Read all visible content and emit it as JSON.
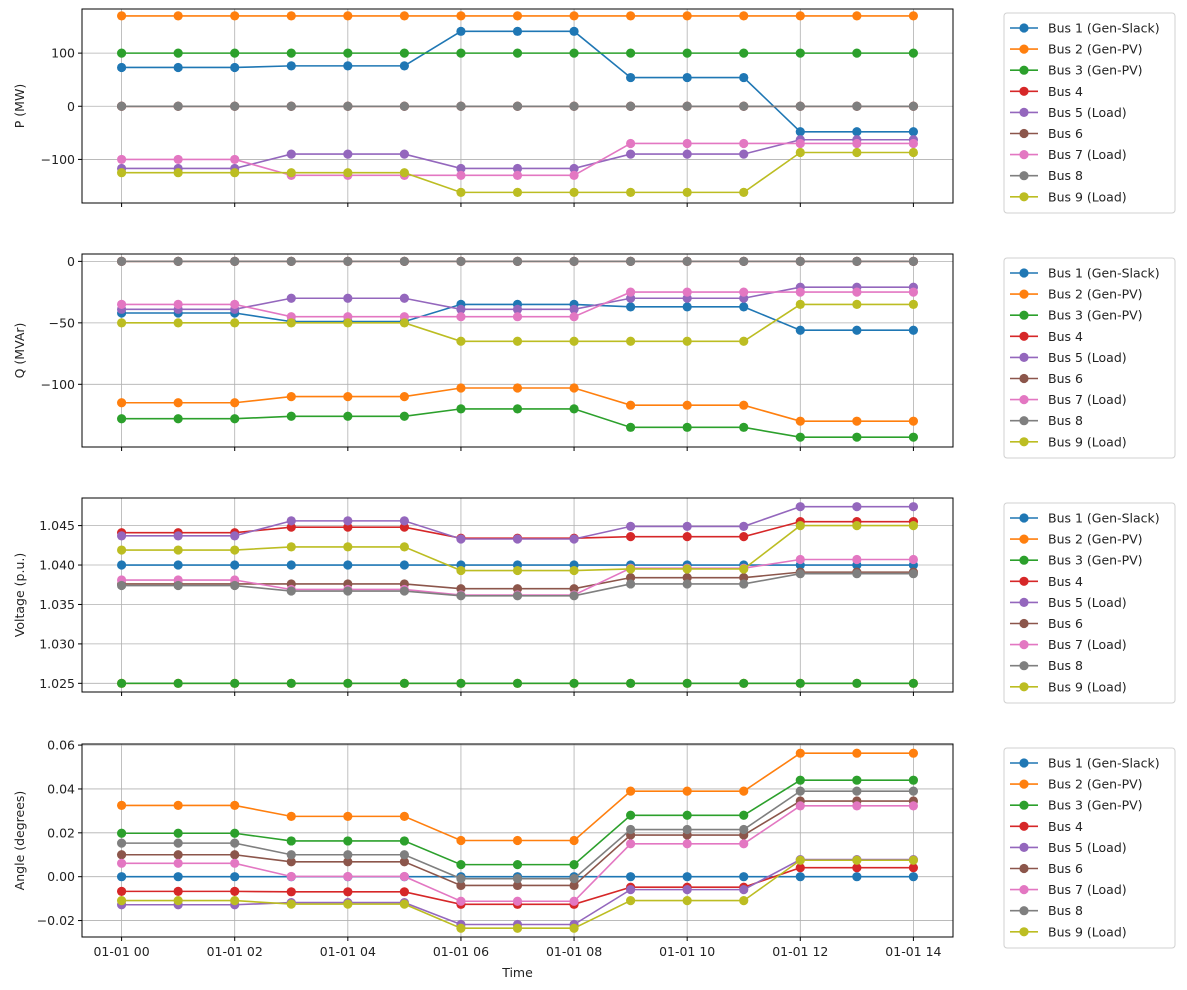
{
  "chart_data": [
    {
      "type": "line",
      "ylabel": "P (MW)",
      "xlabel": "",
      "x": [
        0,
        1,
        2,
        3,
        4,
        5,
        6,
        7,
        8,
        9,
        10,
        11,
        12,
        13,
        14
      ],
      "xlim": [
        -0.7,
        14.7
      ],
      "ylim": [
        -182,
        183
      ],
      "yticks": [
        {
          "v": 100,
          "t": "100"
        },
        {
          "v": 0,
          "t": "0"
        },
        {
          "v": -100,
          "t": "−100"
        }
      ],
      "grid": true,
      "legend_position": "outside-right",
      "series": [
        {
          "name": "Bus 1 (Gen-Slack)",
          "color": "#1f77b4",
          "values": [
            73,
            73,
            73,
            76,
            76,
            76,
            141,
            141,
            141,
            54,
            54,
            54,
            -48,
            -48,
            -48
          ]
        },
        {
          "name": "Bus 2 (Gen-PV)",
          "color": "#ff7f0e",
          "values": [
            170,
            170,
            170,
            170,
            170,
            170,
            170,
            170,
            170,
            170,
            170,
            170,
            170,
            170,
            170
          ]
        },
        {
          "name": "Bus 3 (Gen-PV)",
          "color": "#2ca02c",
          "values": [
            100,
            100,
            100,
            100,
            100,
            100,
            100,
            100,
            100,
            100,
            100,
            100,
            100,
            100,
            100
          ]
        },
        {
          "name": "Bus 4",
          "color": "#d62728",
          "values": [
            0,
            0,
            0,
            0,
            0,
            0,
            0,
            0,
            0,
            0,
            0,
            0,
            0,
            0,
            0
          ]
        },
        {
          "name": "Bus 5 (Load)",
          "color": "#9467bd",
          "values": [
            -117,
            -117,
            -117,
            -90,
            -90,
            -90,
            -117,
            -117,
            -117,
            -90,
            -90,
            -90,
            -63,
            -63,
            -63
          ]
        },
        {
          "name": "Bus 6",
          "color": "#8c564b",
          "values": [
            0,
            0,
            0,
            0,
            0,
            0,
            0,
            0,
            0,
            0,
            0,
            0,
            0,
            0,
            0
          ]
        },
        {
          "name": "Bus 7 (Load)",
          "color": "#e377c2",
          "values": [
            -100,
            -100,
            -100,
            -130,
            -130,
            -130,
            -130,
            -130,
            -130,
            -70,
            -70,
            -70,
            -70,
            -70,
            -70
          ]
        },
        {
          "name": "Bus 8",
          "color": "#7f7f7f",
          "values": [
            0,
            0,
            0,
            0,
            0,
            0,
            0,
            0,
            0,
            0,
            0,
            0,
            0,
            0,
            0
          ]
        },
        {
          "name": "Bus 9 (Load)",
          "color": "#bcbd22",
          "values": [
            -125,
            -125,
            -125,
            -125,
            -125,
            -125,
            -162,
            -162,
            -162,
            -162,
            -162,
            -162,
            -87,
            -87,
            -87
          ]
        }
      ]
    },
    {
      "type": "line",
      "ylabel": "Q (MVAr)",
      "xlabel": "",
      "x": [
        0,
        1,
        2,
        3,
        4,
        5,
        6,
        7,
        8,
        9,
        10,
        11,
        12,
        13,
        14
      ],
      "xlim": [
        -0.7,
        14.7
      ],
      "ylim": [
        -151,
        6
      ],
      "yticks": [
        {
          "v": 0,
          "t": "0"
        },
        {
          "v": -50,
          "t": "−50"
        },
        {
          "v": -100,
          "t": "−100"
        }
      ],
      "grid": true,
      "legend_position": "outside-right",
      "series": [
        {
          "name": "Bus 1 (Gen-Slack)",
          "color": "#1f77b4",
          "values": [
            -42,
            -42,
            -42,
            -49,
            -49,
            -49,
            -35,
            -35,
            -35,
            -37,
            -37,
            -37,
            -56,
            -56,
            -56
          ]
        },
        {
          "name": "Bus 2 (Gen-PV)",
          "color": "#ff7f0e",
          "values": [
            -115,
            -115,
            -115,
            -110,
            -110,
            -110,
            -103,
            -103,
            -103,
            -117,
            -117,
            -117,
            -130,
            -130,
            -130
          ]
        },
        {
          "name": "Bus 3 (Gen-PV)",
          "color": "#2ca02c",
          "values": [
            -128,
            -128,
            -128,
            -126,
            -126,
            -126,
            -120,
            -120,
            -120,
            -135,
            -135,
            -135,
            -143,
            -143,
            -143
          ]
        },
        {
          "name": "Bus 4",
          "color": "#d62728",
          "values": [
            0,
            0,
            0,
            0,
            0,
            0,
            0,
            0,
            0,
            0,
            0,
            0,
            0,
            0,
            0
          ]
        },
        {
          "name": "Bus 5 (Load)",
          "color": "#9467bd",
          "values": [
            -39,
            -39,
            -39,
            -30,
            -30,
            -30,
            -39,
            -39,
            -39,
            -30,
            -30,
            -30,
            -21,
            -21,
            -21
          ]
        },
        {
          "name": "Bus 6",
          "color": "#8c564b",
          "values": [
            0,
            0,
            0,
            0,
            0,
            0,
            0,
            0,
            0,
            0,
            0,
            0,
            0,
            0,
            0
          ]
        },
        {
          "name": "Bus 7 (Load)",
          "color": "#e377c2",
          "values": [
            -35,
            -35,
            -35,
            -45,
            -45,
            -45,
            -45,
            -45,
            -45,
            -25,
            -25,
            -25,
            -25,
            -25,
            -25
          ]
        },
        {
          "name": "Bus 8",
          "color": "#7f7f7f",
          "values": [
            0,
            0,
            0,
            0,
            0,
            0,
            0,
            0,
            0,
            0,
            0,
            0,
            0,
            0,
            0
          ]
        },
        {
          "name": "Bus 9 (Load)",
          "color": "#bcbd22",
          "values": [
            -50,
            -50,
            -50,
            -50,
            -50,
            -50,
            -65,
            -65,
            -65,
            -65,
            -65,
            -65,
            -35,
            -35,
            -35
          ]
        }
      ]
    },
    {
      "type": "line",
      "ylabel": "Voltage (p.u.)",
      "xlabel": "",
      "x": [
        0,
        1,
        2,
        3,
        4,
        5,
        6,
        7,
        8,
        9,
        10,
        11,
        12,
        13,
        14
      ],
      "xlim": [
        -0.7,
        14.7
      ],
      "ylim": [
        1.0239,
        1.0485
      ],
      "yticks": [
        {
          "v": 1.045,
          "t": "1.045"
        },
        {
          "v": 1.04,
          "t": "1.040"
        },
        {
          "v": 1.035,
          "t": "1.035"
        },
        {
          "v": 1.03,
          "t": "1.030"
        },
        {
          "v": 1.025,
          "t": "1.025"
        }
      ],
      "grid": true,
      "legend_position": "outside-right",
      "series": [
        {
          "name": "Bus 1 (Gen-Slack)",
          "color": "#1f77b4",
          "values": [
            1.04,
            1.04,
            1.04,
            1.04,
            1.04,
            1.04,
            1.04,
            1.04,
            1.04,
            1.04,
            1.04,
            1.04,
            1.04,
            1.04,
            1.04
          ]
        },
        {
          "name": "Bus 2 (Gen-PV)",
          "color": "#ff7f0e",
          "values": [
            1.025,
            1.025,
            1.025,
            1.025,
            1.025,
            1.025,
            1.025,
            1.025,
            1.025,
            1.025,
            1.025,
            1.025,
            1.025,
            1.025,
            1.025
          ]
        },
        {
          "name": "Bus 3 (Gen-PV)",
          "color": "#2ca02c",
          "values": [
            1.025,
            1.025,
            1.025,
            1.025,
            1.025,
            1.025,
            1.025,
            1.025,
            1.025,
            1.025,
            1.025,
            1.025,
            1.025,
            1.025,
            1.025
          ]
        },
        {
          "name": "Bus 4",
          "color": "#d62728",
          "values": [
            1.0441,
            1.0441,
            1.0441,
            1.0448,
            1.0448,
            1.0448,
            1.0434,
            1.0434,
            1.0434,
            1.0436,
            1.0436,
            1.0436,
            1.0455,
            1.0455,
            1.0455
          ]
        },
        {
          "name": "Bus 5 (Load)",
          "color": "#9467bd",
          "values": [
            1.0437,
            1.0437,
            1.0437,
            1.0456,
            1.0456,
            1.0456,
            1.0433,
            1.0433,
            1.0433,
            1.0449,
            1.0449,
            1.0449,
            1.0474,
            1.0474,
            1.0474
          ]
        },
        {
          "name": "Bus 6",
          "color": "#8c564b",
          "values": [
            1.0376,
            1.0376,
            1.0376,
            1.0376,
            1.0376,
            1.0376,
            1.037,
            1.037,
            1.037,
            1.0384,
            1.0384,
            1.0384,
            1.0391,
            1.0391,
            1.0391
          ]
        },
        {
          "name": "Bus 7 (Load)",
          "color": "#e377c2",
          "values": [
            1.0381,
            1.0381,
            1.0381,
            1.0369,
            1.0369,
            1.0369,
            1.0362,
            1.0362,
            1.0362,
            1.0396,
            1.0396,
            1.0396,
            1.0407,
            1.0407,
            1.0407
          ]
        },
        {
          "name": "Bus 8",
          "color": "#7f7f7f",
          "values": [
            1.0374,
            1.0374,
            1.0374,
            1.0367,
            1.0367,
            1.0367,
            1.0361,
            1.0361,
            1.0361,
            1.0376,
            1.0376,
            1.0376,
            1.0389,
            1.0389,
            1.0389
          ]
        },
        {
          "name": "Bus 9 (Load)",
          "color": "#bcbd22",
          "values": [
            1.0419,
            1.0419,
            1.0419,
            1.0423,
            1.0423,
            1.0423,
            1.0393,
            1.0393,
            1.0393,
            1.0395,
            1.0395,
            1.0395,
            1.045,
            1.045,
            1.045
          ]
        }
      ]
    },
    {
      "type": "line",
      "ylabel": "Angle (degrees)",
      "xlabel": "Time",
      "x": [
        0,
        1,
        2,
        3,
        4,
        5,
        6,
        7,
        8,
        9,
        10,
        11,
        12,
        13,
        14
      ],
      "xlim": [
        -0.7,
        14.7
      ],
      "ylim": [
        -0.0275,
        0.0605
      ],
      "yticks": [
        {
          "v": 0.06,
          "t": "0.06"
        },
        {
          "v": 0.04,
          "t": "0.04"
        },
        {
          "v": 0.02,
          "t": "0.02"
        },
        {
          "v": 0.0,
          "t": "0.00"
        },
        {
          "v": -0.02,
          "t": "−0.02"
        }
      ],
      "grid": true,
      "legend_position": "outside-right",
      "xticks": [
        {
          "v": 0,
          "t": "01-01 00"
        },
        {
          "v": 2,
          "t": "01-01 02"
        },
        {
          "v": 4,
          "t": "01-01 04"
        },
        {
          "v": 6,
          "t": "01-01 06"
        },
        {
          "v": 8,
          "t": "01-01 08"
        },
        {
          "v": 10,
          "t": "01-01 10"
        },
        {
          "v": 12,
          "t": "01-01 12"
        },
        {
          "v": 14,
          "t": "01-01 14"
        }
      ],
      "series": [
        {
          "name": "Bus 1 (Gen-Slack)",
          "color": "#1f77b4",
          "values": [
            0,
            0,
            0,
            0,
            0,
            0,
            0,
            0,
            0,
            0,
            0,
            0,
            0,
            0,
            0
          ]
        },
        {
          "name": "Bus 2 (Gen-PV)",
          "color": "#ff7f0e",
          "values": [
            0.0325,
            0.0325,
            0.0325,
            0.0275,
            0.0275,
            0.0275,
            0.0165,
            0.0165,
            0.0165,
            0.039,
            0.039,
            0.039,
            0.0563,
            0.0563,
            0.0563
          ]
        },
        {
          "name": "Bus 3 (Gen-PV)",
          "color": "#2ca02c",
          "values": [
            0.0198,
            0.0198,
            0.0198,
            0.0163,
            0.0163,
            0.0163,
            0.0055,
            0.0055,
            0.0055,
            0.028,
            0.028,
            0.028,
            0.044,
            0.044,
            0.044
          ]
        },
        {
          "name": "Bus 4",
          "color": "#d62728",
          "values": [
            -0.0067,
            -0.0067,
            -0.0067,
            -0.0069,
            -0.0069,
            -0.0069,
            -0.0126,
            -0.0126,
            -0.0126,
            -0.0048,
            -0.0048,
            -0.0048,
            0.0041,
            0.0041,
            0.0041
          ]
        },
        {
          "name": "Bus 5 (Load)",
          "color": "#9467bd",
          "values": [
            -0.0128,
            -0.0128,
            -0.0128,
            -0.0118,
            -0.0118,
            -0.0118,
            -0.0218,
            -0.0218,
            -0.0218,
            -0.0059,
            -0.0059,
            -0.0059,
            0.0078,
            0.0078,
            0.0078
          ]
        },
        {
          "name": "Bus 6",
          "color": "#8c564b",
          "values": [
            0.01,
            0.01,
            0.01,
            0.0068,
            0.0068,
            0.0068,
            -0.004,
            -0.004,
            -0.004,
            0.019,
            0.019,
            0.019,
            0.0345,
            0.0345,
            0.0345
          ]
        },
        {
          "name": "Bus 7 (Load)",
          "color": "#e377c2",
          "values": [
            0.0061,
            0.0061,
            0.0061,
            0.0001,
            0.0001,
            0.0001,
            -0.0112,
            -0.0112,
            -0.0112,
            0.015,
            0.015,
            0.015,
            0.0323,
            0.0323,
            0.0323
          ]
        },
        {
          "name": "Bus 8",
          "color": "#7f7f7f",
          "values": [
            0.0153,
            0.0153,
            0.0153,
            0.01,
            0.01,
            0.01,
            -0.0009,
            -0.0009,
            -0.0009,
            0.0215,
            0.0215,
            0.0215,
            0.039,
            0.039,
            0.039
          ]
        },
        {
          "name": "Bus 9 (Load)",
          "color": "#bcbd22",
          "values": [
            -0.0109,
            -0.0109,
            -0.0109,
            -0.0125,
            -0.0125,
            -0.0125,
            -0.0235,
            -0.0235,
            -0.0235,
            -0.0109,
            -0.0109,
            -0.0109,
            0.0075,
            0.0075,
            0.0075
          ]
        }
      ]
    }
  ]
}
